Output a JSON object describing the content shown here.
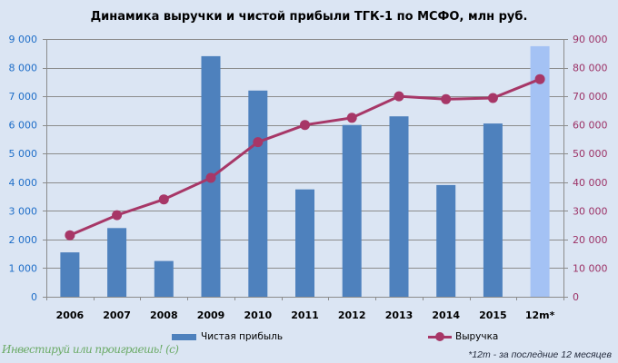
{
  "title": "Динамика выручки и чистой прибыли ТГК-1 по МСФО, млн руб.",
  "watermark": "Инвестируй или проиграешь! (с)",
  "footnote": "*12m - за последние 12 месяцев",
  "legend": {
    "bar_label": "Чистая прибыль",
    "line_label": "Выручка"
  },
  "colors": {
    "background": "#DBE5F3",
    "bar": "#4E81BD",
    "bar_forecast": "#A4C2F4",
    "line": "#A73767",
    "left_axis_labels": "#1F6EC8",
    "right_axis_labels": "#9C3266",
    "grid": "#8C8C8C",
    "x_labels": "#000000",
    "watermark": "#6CAB68",
    "footnote_text": "#252C3E"
  },
  "chart_data": {
    "type": "bar+line",
    "categories": [
      "2006",
      "2007",
      "2008",
      "2009",
      "2010",
      "2011",
      "2012",
      "2013",
      "2014",
      "2015",
      "12m*"
    ],
    "series": [
      {
        "name": "Чистая прибыль",
        "type": "bar",
        "axis": "left",
        "values": [
          1550,
          2400,
          1250,
          8400,
          7200,
          3750,
          6000,
          6300,
          3900,
          6050,
          8750
        ],
        "highlight_last": true
      },
      {
        "name": "Выручка",
        "type": "line",
        "axis": "right",
        "values": [
          21500,
          28500,
          34000,
          41500,
          54000,
          60000,
          62500,
          70000,
          69000,
          69400,
          76000
        ]
      }
    ],
    "left_axis": {
      "min": 0,
      "max": 9000,
      "step": 1000,
      "tick_labels": [
        "0",
        "1 000",
        "2 000",
        "3 000",
        "4 000",
        "5 000",
        "6 000",
        "7 000",
        "8 000",
        "9 000"
      ]
    },
    "right_axis": {
      "min": 0,
      "max": 90000,
      "step": 10000,
      "tick_labels": [
        "0",
        "10 000",
        "20 000",
        "30 000",
        "40 000",
        "50 000",
        "60 000",
        "70 000",
        "80 000",
        "90 000"
      ]
    },
    "grid": true,
    "legend_position": "bottom"
  }
}
